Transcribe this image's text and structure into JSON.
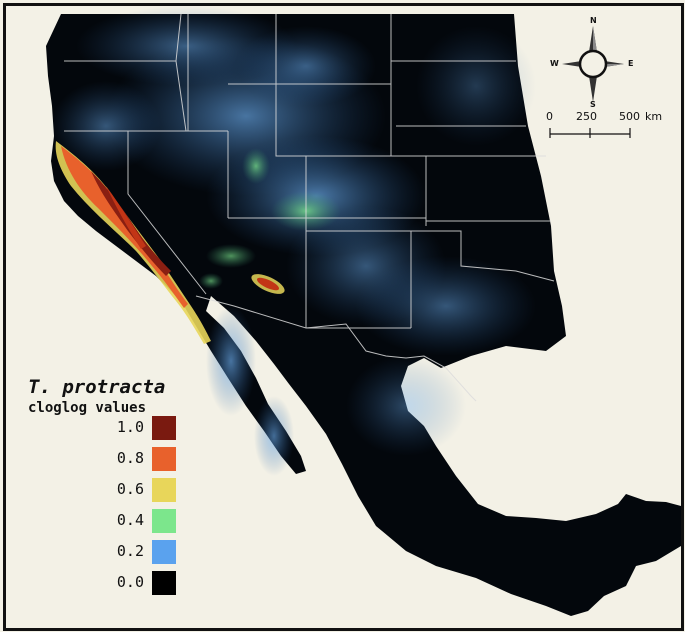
{
  "legend": {
    "title": "T. protracta",
    "subtitle": "cloglog values",
    "entries": [
      {
        "label": "1.0",
        "color": "#7a1a10"
      },
      {
        "label": "0.8",
        "color": "#e8612c"
      },
      {
        "label": "0.6",
        "color": "#e8d65a"
      },
      {
        "label": "0.4",
        "color": "#7ce68c"
      },
      {
        "label": "0.2",
        "color": "#5aa2ee"
      },
      {
        "label": "0.0",
        "color": "#000000"
      }
    ]
  },
  "scale_bar": {
    "labels": [
      "0",
      "250",
      "500"
    ],
    "unit": "km"
  },
  "compass": {
    "north": "N",
    "south": "S",
    "east": "E",
    "west": "W"
  },
  "colors": {
    "background": "#f3f1e6",
    "land": "#03070c",
    "low_blue": "#5aa2ee",
    "high_red": "#c23516",
    "borders": "#dddddd"
  }
}
